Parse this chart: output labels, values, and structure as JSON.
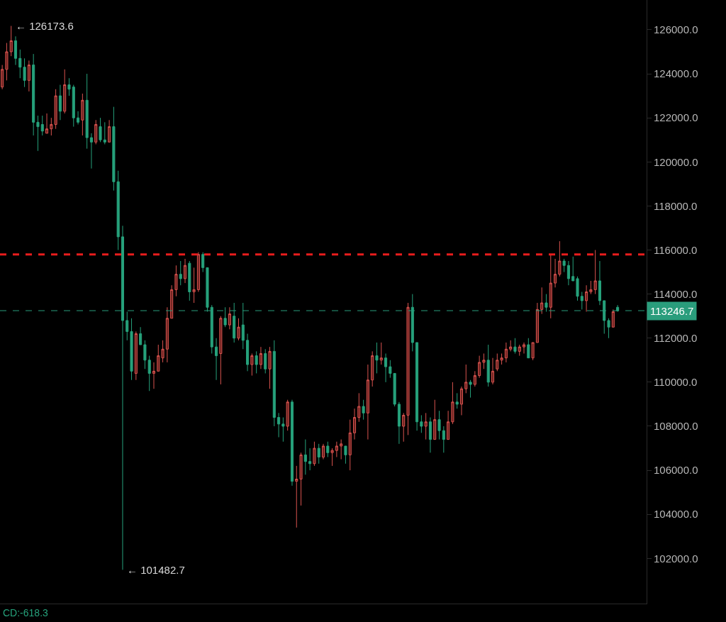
{
  "chart_data": {
    "type": "candlestick",
    "categories": [
      null,
      null,
      null,
      null,
      null,
      null,
      null,
      null,
      null,
      null,
      null,
      null,
      null,
      null,
      null,
      null,
      null,
      null,
      null,
      null,
      null,
      null,
      null,
      null,
      null,
      null,
      null,
      null,
      null,
      null,
      null,
      null,
      null,
      null,
      null,
      null,
      null,
      null,
      null,
      null,
      null,
      null,
      null,
      null,
      null,
      null,
      null,
      null,
      null,
      null,
      null,
      null,
      null,
      null,
      null,
      null,
      null,
      null,
      null,
      null,
      null,
      null,
      null,
      null,
      null,
      null,
      null,
      null,
      null,
      null,
      null,
      null,
      null,
      null,
      null,
      null,
      null,
      null,
      null,
      null,
      null,
      null,
      null,
      null,
      null,
      null,
      null,
      null,
      null,
      null,
      null,
      null,
      null,
      null,
      null,
      null,
      null,
      null,
      null,
      null,
      null,
      null,
      null,
      null,
      null,
      null,
      null,
      null,
      null,
      null,
      null,
      null,
      null,
      null,
      null,
      null,
      null,
      null,
      null,
      null,
      null,
      null,
      null,
      null,
      null,
      null,
      null,
      null,
      null,
      null,
      null,
      null,
      null,
      null,
      null,
      null,
      null,
      null,
      null
    ],
    "ohlc": [
      [
        123400,
        124400,
        123300,
        124200
      ],
      [
        124200,
        125400,
        123700,
        125000
      ],
      [
        125000,
        126173.6,
        124800,
        125500
      ],
      [
        125500,
        125700,
        124400,
        124700
      ],
      [
        124700,
        125100,
        123800,
        124300
      ],
      [
        124300,
        124700,
        123400,
        123700
      ],
      [
        123700,
        124600,
        123200,
        124400
      ],
      [
        124400,
        124900,
        121200,
        121800
      ],
      [
        121800,
        122100,
        120500,
        121600
      ],
      [
        121700,
        122100,
        121200,
        121400
      ],
      [
        121300,
        122200,
        121300,
        121500
      ],
      [
        121500,
        122000,
        121200,
        121700
      ],
      [
        121700,
        123300,
        121500,
        123000
      ],
      [
        123000,
        123500,
        121900,
        122300
      ],
      [
        122300,
        124200,
        122200,
        123500
      ],
      [
        123500,
        123800,
        123000,
        123300
      ],
      [
        123400,
        123500,
        121600,
        122000
      ],
      [
        122000,
        122300,
        121700,
        121800
      ],
      [
        121900,
        123100,
        121200,
        122800
      ],
      [
        122800,
        124000,
        120600,
        121100
      ],
      [
        121100,
        121300,
        119700,
        120900
      ],
      [
        120900,
        121900,
        120800,
        121700
      ],
      [
        121600,
        122000,
        120900,
        121000
      ],
      [
        121000,
        121800,
        120800,
        120900
      ],
      [
        120900,
        121900,
        120900,
        121600
      ],
      [
        121600,
        122500,
        118700,
        119100
      ],
      [
        119100,
        119600,
        116000,
        116600
      ],
      [
        116600,
        117100,
        101482.7,
        112800
      ],
      [
        112800,
        113200,
        111900,
        112300
      ],
      [
        112300,
        112900,
        110100,
        110500
      ],
      [
        110400,
        112300,
        110100,
        112200
      ],
      [
        112200,
        112500,
        111700,
        111700
      ],
      [
        111700,
        111900,
        110600,
        111000
      ],
      [
        111000,
        111200,
        109600,
        110400
      ],
      [
        110400,
        110900,
        109700,
        110500
      ],
      [
        110500,
        111700,
        110500,
        111200
      ],
      [
        111100,
        111900,
        110900,
        111500
      ],
      [
        111500,
        113400,
        110900,
        112900
      ],
      [
        112900,
        114400,
        112900,
        114200
      ],
      [
        114200,
        115300,
        113900,
        114900
      ],
      [
        114900,
        115500,
        114400,
        114700
      ],
      [
        114700,
        115600,
        114500,
        115300
      ],
      [
        115400,
        115500,
        113700,
        114100
      ],
      [
        114100,
        115200,
        113600,
        114200
      ],
      [
        114200,
        115900,
        114100,
        115800
      ],
      [
        115800,
        115900,
        115000,
        115200
      ],
      [
        115200,
        115200,
        113200,
        113400
      ],
      [
        113400,
        113500,
        111300,
        111600
      ],
      [
        111600,
        112000,
        110100,
        111200
      ],
      [
        111300,
        113000,
        109900,
        112900
      ],
      [
        112900,
        113400,
        112500,
        112600
      ],
      [
        112600,
        113400,
        112400,
        113100
      ],
      [
        113000,
        113600,
        111800,
        112000
      ],
      [
        112000,
        112900,
        111900,
        112500
      ],
      [
        112600,
        113600,
        111500,
        111900
      ],
      [
        111900,
        112200,
        110500,
        110800
      ],
      [
        110800,
        111300,
        110300,
        111200
      ],
      [
        111200,
        111400,
        110400,
        110800
      ],
      [
        110800,
        111600,
        110600,
        111300
      ],
      [
        111300,
        111500,
        110400,
        110600
      ],
      [
        110600,
        111600,
        109700,
        111400
      ],
      [
        111400,
        111900,
        108000,
        108400
      ],
      [
        108400,
        108600,
        107500,
        108100
      ],
      [
        108100,
        108400,
        107300,
        108000
      ],
      [
        108000,
        109200,
        107800,
        109100
      ],
      [
        109100,
        109200,
        105300,
        105500
      ],
      [
        105500,
        106200,
        103400,
        105600
      ],
      [
        105600,
        106800,
        104400,
        106700
      ],
      [
        106700,
        107400,
        105800,
        106400
      ],
      [
        106400,
        107000,
        106000,
        106300
      ],
      [
        106300,
        107300,
        106200,
        107000
      ],
      [
        107000,
        107200,
        106300,
        106600
      ],
      [
        106600,
        107200,
        106500,
        107100
      ],
      [
        107100,
        107300,
        106600,
        106800
      ],
      [
        106800,
        107000,
        106200,
        106900
      ],
      [
        106900,
        107300,
        106600,
        107100
      ],
      [
        107100,
        107400,
        106500,
        107200
      ],
      [
        107100,
        107100,
        106300,
        106700
      ],
      [
        106700,
        108300,
        106000,
        107700
      ],
      [
        107700,
        108800,
        107400,
        108400
      ],
      [
        108400,
        109500,
        108200,
        108900
      ],
      [
        108900,
        109200,
        108300,
        108600
      ],
      [
        108600,
        110800,
        107400,
        110100
      ],
      [
        110100,
        111400,
        109800,
        111200
      ],
      [
        111200,
        111800,
        110400,
        111000
      ],
      [
        111000,
        111800,
        110800,
        111100
      ],
      [
        111100,
        111300,
        110000,
        110700
      ],
      [
        110700,
        111000,
        110200,
        110400
      ],
      [
        110400,
        110400,
        108900,
        109000
      ],
      [
        109000,
        109100,
        107200,
        108000
      ],
      [
        108000,
        108600,
        107300,
        108500
      ],
      [
        108500,
        113600,
        107600,
        113400
      ],
      [
        113400,
        114000,
        111400,
        111800
      ],
      [
        111800,
        111800,
        107800,
        108200
      ],
      [
        108200,
        108500,
        107700,
        108000
      ],
      [
        108000,
        108600,
        107400,
        108200
      ],
      [
        108200,
        108400,
        106800,
        107400
      ],
      [
        107400,
        109200,
        107400,
        108300
      ],
      [
        108300,
        108700,
        107400,
        107800
      ],
      [
        107800,
        108000,
        106800,
        107400
      ],
      [
        107400,
        108700,
        107400,
        108200
      ],
      [
        108200,
        110000,
        108100,
        109100
      ],
      [
        109100,
        109500,
        108800,
        109000
      ],
      [
        109000,
        109800,
        108500,
        109700
      ],
      [
        109700,
        110800,
        109500,
        110000
      ],
      [
        110000,
        110100,
        109300,
        109900
      ],
      [
        109900,
        110500,
        109800,
        110300
      ],
      [
        110300,
        111200,
        110200,
        110900
      ],
      [
        110900,
        111300,
        110600,
        111000
      ],
      [
        111000,
        111700,
        109800,
        110000
      ],
      [
        110000,
        111100,
        109900,
        110500
      ],
      [
        110600,
        111300,
        110500,
        111000
      ],
      [
        111000,
        111300,
        110800,
        111100
      ],
      [
        111100,
        111800,
        110900,
        111500
      ],
      [
        111500,
        111900,
        111400,
        111600
      ],
      [
        111600,
        112000,
        111300,
        111400
      ],
      [
        111400,
        111700,
        111200,
        111600
      ],
      [
        111600,
        111800,
        111300,
        111700
      ],
      [
        111700,
        112000,
        111100,
        111100
      ],
      [
        111100,
        111800,
        111000,
        111800
      ],
      [
        111800,
        113600,
        111800,
        113300
      ],
      [
        113300,
        114300,
        113100,
        113600
      ],
      [
        113600,
        114000,
        113200,
        113400
      ],
      [
        113400,
        115800,
        112900,
        114500
      ],
      [
        114500,
        115600,
        114300,
        114900
      ],
      [
        114900,
        116400,
        114800,
        115500
      ],
      [
        115500,
        115600,
        115000,
        115300
      ],
      [
        115300,
        115500,
        114400,
        114700
      ],
      [
        114800,
        115700,
        114600,
        114600
      ],
      [
        114700,
        114800,
        113700,
        113900
      ],
      [
        113900,
        114100,
        113300,
        113700
      ],
      [
        113700,
        114400,
        113200,
        114100
      ],
      [
        114100,
        114600,
        114000,
        114200
      ],
      [
        114200,
        116000,
        114000,
        114600
      ],
      [
        114600,
        115500,
        113500,
        113700
      ],
      [
        113700,
        113700,
        112200,
        112800
      ],
      [
        112800,
        112900,
        112000,
        112500
      ],
      [
        112500,
        113300,
        112500,
        113200
      ],
      [
        113400,
        113500,
        113200,
        113246.7
      ]
    ],
    "ylim": [
      99950,
      127350
    ],
    "yticks": [
      {
        "value": 102000,
        "label": "102000.0"
      },
      {
        "value": 104000,
        "label": "104000.0"
      },
      {
        "value": 106000,
        "label": "106000.0"
      },
      {
        "value": 108000,
        "label": "108000.0"
      },
      {
        "value": 110000,
        "label": "110000.0"
      },
      {
        "value": 112000,
        "label": "112000.0"
      },
      {
        "value": 114000,
        "label": "114000.0"
      },
      {
        "value": 116000,
        "label": "116000.0"
      },
      {
        "value": 118000,
        "label": "118000.0"
      },
      {
        "value": 120000,
        "label": "120000.0"
      },
      {
        "value": 122000,
        "label": "122000.0"
      },
      {
        "value": 124000,
        "label": "124000.0"
      },
      {
        "value": 126000,
        "label": "126000.0"
      }
    ],
    "ref_lines": [
      {
        "axis": "y",
        "value": 115800,
        "color": "#e81c1c",
        "line_style": "dashed"
      },
      {
        "axis": "y",
        "value": 113246.7,
        "label": "113246.7",
        "color": "#2a9d7c",
        "line_style": "dashed"
      }
    ],
    "annotations": [
      "← 126173.6",
      "← 101482.7",
      "CD:-618.3"
    ],
    "tick_labels": "y"
  }
}
